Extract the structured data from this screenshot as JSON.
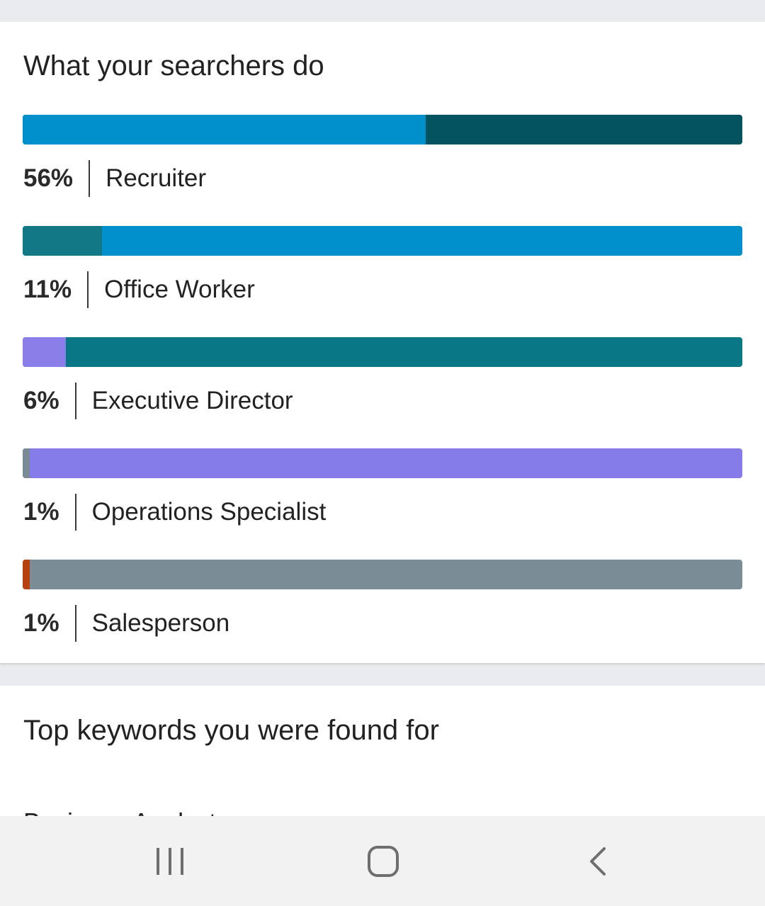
{
  "searchers": {
    "title": "What your searchers do",
    "items": [
      {
        "pct_label": "56%",
        "role": "Recruiter",
        "fill_fraction": 0.56,
        "fill_color": "#0290cc",
        "track_color": "#02525f"
      },
      {
        "pct_label": "11%",
        "role": "Office Worker",
        "fill_fraction": 0.11,
        "fill_color": "#127885",
        "track_color": "#0290cc"
      },
      {
        "pct_label": "6%",
        "role": "Executive Director",
        "fill_fraction": 0.06,
        "fill_color": "#8a7ee9",
        "track_color": "#0a7786"
      },
      {
        "pct_label": "1%",
        "role": "Operations Specialist",
        "fill_fraction": 0.01,
        "fill_color": "#7a8b96",
        "track_color": "#867ce9"
      },
      {
        "pct_label": "1%",
        "role": "Salesperson",
        "fill_fraction": 0.01,
        "fill_color": "#b6410e",
        "track_color": "#7a8c96"
      }
    ]
  },
  "keywords": {
    "title": "Top keywords you were found for",
    "first_keyword": "Business Analyst"
  },
  "nav": {
    "recents_icon": "recent-apps-icon",
    "home_icon": "home-icon",
    "back_icon": "back-icon"
  }
}
